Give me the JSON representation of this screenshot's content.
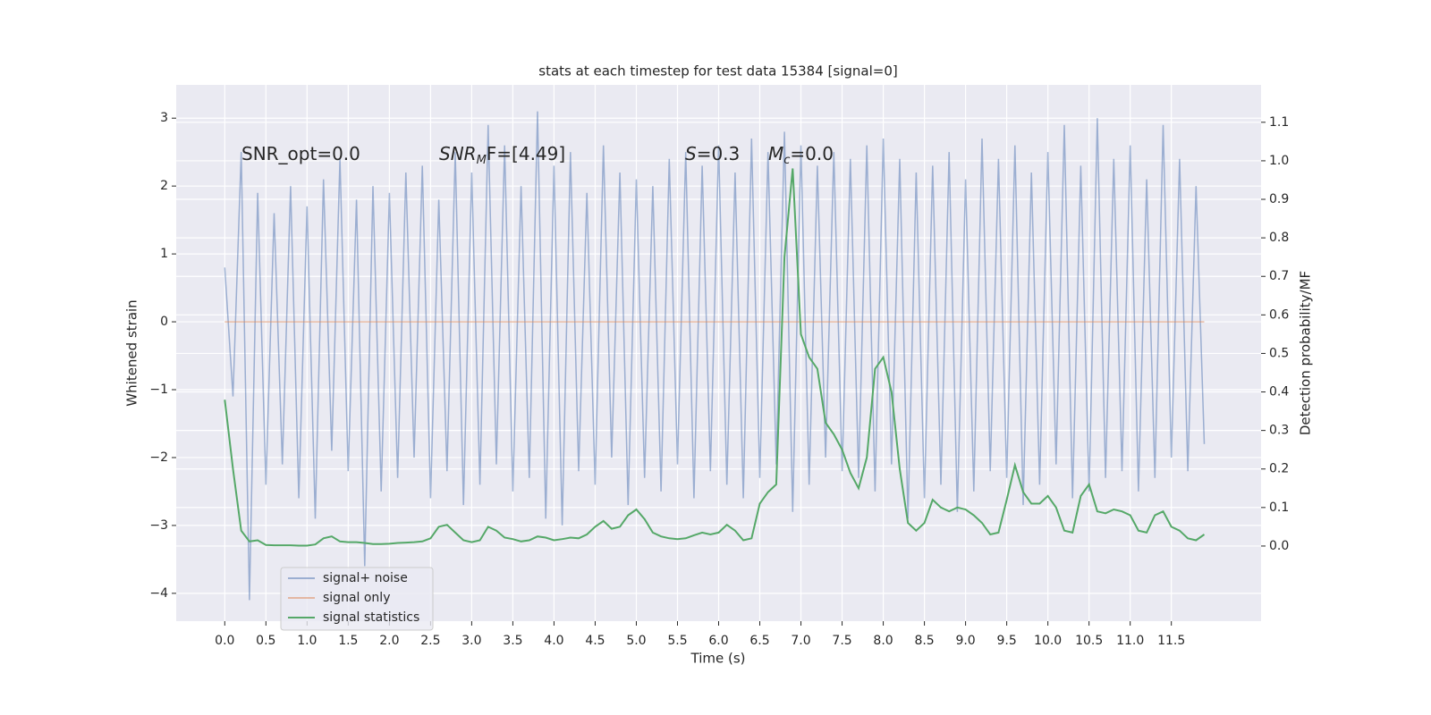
{
  "chart_data": {
    "type": "line",
    "title": "stats at each timestep for test data 15384 [signal=0]",
    "x_label": "Time (s)",
    "y_label": "Whitened strain",
    "y2_label": "Detection probability/MF",
    "annotations": [
      {
        "text": "SNR_opt=0.0"
      },
      {
        "text": "SNR",
        "sub": "M",
        "tail": "F=[4.49]"
      },
      {
        "text": "S",
        "tail": "=0.3"
      },
      {
        "text": "M",
        "sub": "c",
        "tail": "=0.0"
      }
    ],
    "x": [
      0.0,
      0.1,
      0.2,
      0.3,
      0.4,
      0.5,
      0.6,
      0.7,
      0.8,
      0.9,
      1.0,
      1.1,
      1.2,
      1.3,
      1.4,
      1.5,
      1.6,
      1.7,
      1.8,
      1.9,
      2.0,
      2.1,
      2.2,
      2.3,
      2.4,
      2.5,
      2.6,
      2.7,
      2.8,
      2.9,
      3.0,
      3.1,
      3.2,
      3.3,
      3.4,
      3.5,
      3.6,
      3.7,
      3.8,
      3.9,
      4.0,
      4.1,
      4.2,
      4.3,
      4.4,
      4.5,
      4.6,
      4.7,
      4.8,
      4.9,
      5.0,
      5.1,
      5.2,
      5.3,
      5.4,
      5.5,
      5.6,
      5.7,
      5.8,
      5.9,
      6.0,
      6.1,
      6.2,
      6.3,
      6.4,
      6.5,
      6.6,
      6.7,
      6.8,
      6.9,
      7.0,
      7.1,
      7.2,
      7.3,
      7.4,
      7.5,
      7.6,
      7.7,
      7.8,
      7.9,
      8.0,
      8.1,
      8.2,
      8.3,
      8.4,
      8.5,
      8.6,
      8.7,
      8.8,
      8.9,
      9.0,
      9.1,
      9.2,
      9.3,
      9.4,
      9.5,
      9.6,
      9.7,
      9.8,
      9.9,
      10.0,
      10.1,
      10.2,
      10.3,
      10.4,
      10.5,
      10.6,
      10.7,
      10.8,
      10.9,
      11.0,
      11.1,
      11.2,
      11.3,
      11.4,
      11.5,
      11.6,
      11.7,
      11.8,
      11.9
    ],
    "series": [
      {
        "name": "signal+ noise",
        "color": "#4c72b0",
        "values": [
          0.8,
          -1.1,
          2.5,
          -4.1,
          1.9,
          -2.4,
          1.6,
          -2.1,
          2.0,
          -2.6,
          1.7,
          -2.9,
          2.1,
          -1.9,
          2.4,
          -2.2,
          1.8,
          -3.6,
          2.0,
          -2.5,
          1.9,
          -2.3,
          2.2,
          -2.0,
          2.3,
          -2.6,
          1.8,
          -2.2,
          2.5,
          -2.7,
          2.2,
          -2.4,
          2.9,
          -2.1,
          2.6,
          -2.5,
          2.0,
          -2.3,
          3.1,
          -2.9,
          2.3,
          -3.0,
          2.5,
          -2.2,
          1.9,
          -2.4,
          2.6,
          -2.0,
          2.2,
          -2.7,
          2.1,
          -2.3,
          2.0,
          -2.5,
          2.4,
          -2.1,
          2.5,
          -2.6,
          2.3,
          -2.2,
          2.6,
          -2.4,
          2.2,
          -2.6,
          2.7,
          -2.3,
          2.5,
          -2.1,
          2.8,
          -2.8,
          2.6,
          -2.4,
          2.3,
          -2.0,
          2.5,
          -2.2,
          2.4,
          -2.3,
          2.6,
          -2.5,
          2.7,
          -2.1,
          2.4,
          -2.9,
          2.2,
          -2.6,
          2.3,
          -2.4,
          2.5,
          -2.8,
          2.1,
          -2.5,
          2.7,
          -2.2,
          2.4,
          -2.3,
          2.6,
          -2.7,
          2.2,
          -2.4,
          2.5,
          -2.1,
          2.9,
          -2.6,
          2.3,
          -2.5,
          3.0,
          -2.3,
          2.4,
          -2.2,
          2.6,
          -2.5,
          2.1,
          -2.3,
          2.9,
          -2.0,
          2.4,
          -2.2,
          2.0,
          -1.8
        ]
      },
      {
        "name": "signal only",
        "color": "#dd8452",
        "values": [
          0,
          0,
          0,
          0,
          0,
          0,
          0,
          0,
          0,
          0,
          0,
          0,
          0,
          0,
          0,
          0,
          0,
          0,
          0,
          0,
          0,
          0,
          0,
          0,
          0,
          0,
          0,
          0,
          0,
          0,
          0,
          0,
          0,
          0,
          0,
          0,
          0,
          0,
          0,
          0,
          0,
          0,
          0,
          0,
          0,
          0,
          0,
          0,
          0,
          0,
          0,
          0,
          0,
          0,
          0,
          0,
          0,
          0,
          0,
          0,
          0,
          0,
          0,
          0,
          0,
          0,
          0,
          0,
          0,
          0,
          0,
          0,
          0,
          0,
          0,
          0,
          0,
          0,
          0,
          0,
          0,
          0,
          0,
          0,
          0,
          0,
          0,
          0,
          0,
          0,
          0,
          0,
          0,
          0,
          0,
          0,
          0,
          0,
          0,
          0,
          0,
          0,
          0,
          0,
          0,
          0,
          0,
          0,
          0,
          0,
          0,
          0,
          0,
          0,
          0,
          0,
          0,
          0,
          0,
          0
        ]
      },
      {
        "name": "signal statistics",
        "color": "#55a868",
        "axis": "y2",
        "values": [
          0.38,
          0.2,
          0.04,
          0.012,
          0.015,
          0.003,
          0.002,
          0.002,
          0.002,
          0.001,
          0.001,
          0.004,
          0.02,
          0.025,
          0.012,
          0.01,
          0.01,
          0.008,
          0.005,
          0.005,
          0.006,
          0.008,
          0.009,
          0.01,
          0.012,
          0.02,
          0.05,
          0.055,
          0.035,
          0.015,
          0.01,
          0.015,
          0.05,
          0.04,
          0.022,
          0.018,
          0.012,
          0.015,
          0.025,
          0.022,
          0.015,
          0.018,
          0.022,
          0.02,
          0.03,
          0.05,
          0.065,
          0.045,
          0.05,
          0.08,
          0.095,
          0.07,
          0.035,
          0.025,
          0.02,
          0.018,
          0.02,
          0.028,
          0.035,
          0.03,
          0.035,
          0.055,
          0.04,
          0.015,
          0.02,
          0.11,
          0.14,
          0.16,
          0.75,
          0.98,
          0.55,
          0.49,
          0.46,
          0.32,
          0.29,
          0.25,
          0.19,
          0.15,
          0.23,
          0.46,
          0.49,
          0.4,
          0.2,
          0.06,
          0.04,
          0.06,
          0.12,
          0.1,
          0.09,
          0.1,
          0.095,
          0.08,
          0.06,
          0.03,
          0.035,
          0.12,
          0.21,
          0.14,
          0.11,
          0.11,
          0.13,
          0.1,
          0.04,
          0.035,
          0.13,
          0.16,
          0.09,
          0.085,
          0.095,
          0.09,
          0.08,
          0.04,
          0.035,
          0.08,
          0.09,
          0.05,
          0.04,
          0.02,
          0.015,
          0.03
        ]
      }
    ],
    "xlim": [
      -0.59,
      12.59
    ],
    "ylim": [
      -4.41,
      3.49
    ],
    "y2lim": [
      -0.195,
      1.197
    ],
    "xticks": [
      {
        "value": 0,
        "label": "0.0"
      },
      0.5,
      {
        "value": 1,
        "label": "1.0"
      },
      1.5,
      {
        "value": 2,
        "label": "2.0"
      },
      2.5,
      {
        "value": 3,
        "label": "3.0"
      },
      3.5,
      {
        "value": 4,
        "label": "4.0"
      },
      4.5,
      {
        "value": 5,
        "label": "5.0"
      },
      5.5,
      {
        "value": 6,
        "label": "6.0"
      },
      6.5,
      {
        "value": 7,
        "label": "7.0"
      },
      7.5,
      {
        "value": 8,
        "label": "8.0"
      },
      8.5,
      {
        "value": 9,
        "label": "9.0"
      },
      9.5,
      {
        "value": 10,
        "label": "10.0"
      },
      10.5,
      {
        "value": 11,
        "label": "11.0"
      },
      11.5
    ],
    "yticks": [
      {
        "value": -4,
        "label": "−4"
      },
      {
        "value": -3,
        "label": "−3"
      },
      {
        "value": -2,
        "label": "−2"
      },
      {
        "value": -1,
        "label": "−1"
      },
      0,
      1,
      2,
      3
    ],
    "y2ticks": [
      {
        "value": 0,
        "label": "0.0"
      },
      0.1,
      0.2,
      0.3,
      0.4,
      0.5,
      0.6,
      0.7,
      0.8,
      0.9,
      {
        "value": 1,
        "label": "1.0"
      },
      1.1
    ],
    "grid": true,
    "legend": "lower left"
  }
}
